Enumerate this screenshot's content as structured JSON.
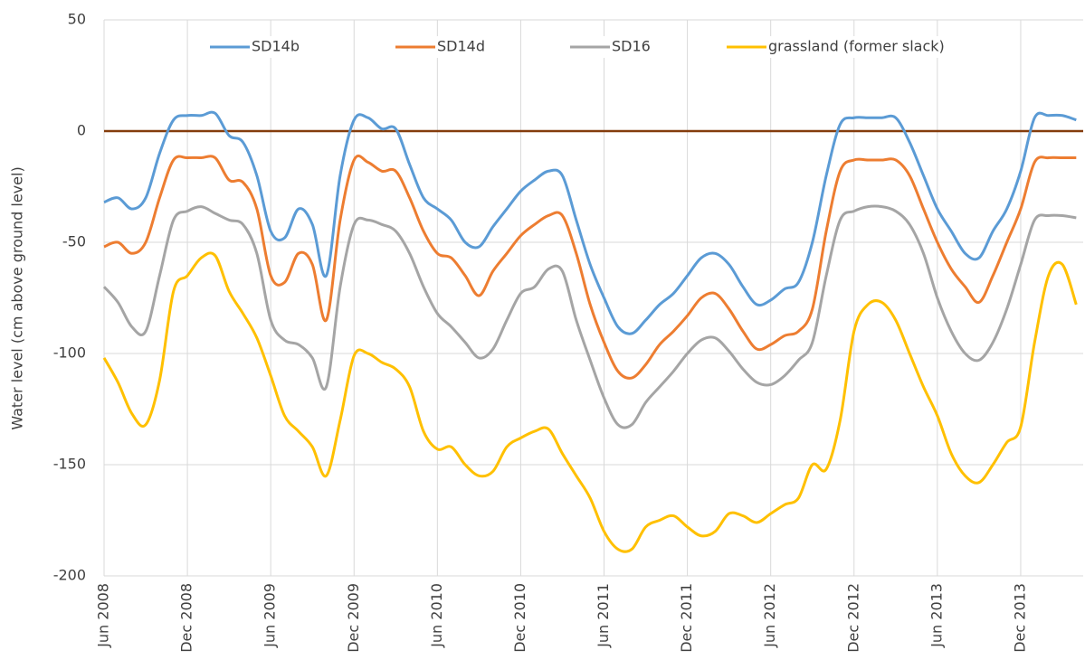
{
  "chart_data": {
    "type": "line",
    "y_label": "Water level (cm above ground level)",
    "categories": [
      "Jun 2008",
      null,
      null,
      null,
      null,
      null,
      "Dec 2008",
      null,
      null,
      null,
      null,
      null,
      "Jun 2009",
      null,
      null,
      null,
      null,
      null,
      "Dec 2009",
      null,
      null,
      null,
      null,
      null,
      "Jun 2010",
      null,
      null,
      null,
      null,
      null,
      "Dec 2010",
      null,
      null,
      null,
      null,
      null,
      "Jun 2011",
      null,
      null,
      null,
      null,
      null,
      "Dec 2011",
      null,
      null,
      null,
      null,
      null,
      "Jun 2012",
      null,
      null,
      null,
      null,
      null,
      "Dec 2012",
      null,
      null,
      null,
      null,
      null,
      "Jun 2013",
      null,
      null,
      null,
      null,
      null,
      "Dec 2013",
      null,
      null,
      null,
      null
    ],
    "series": [
      {
        "name": "SD14b",
        "color": "#5b9bd5",
        "values": [
          -32,
          -30,
          -35,
          -30,
          -10,
          5,
          7,
          7,
          8,
          -2,
          -5,
          -20,
          -45,
          -48,
          -35,
          -42,
          -65,
          -20,
          5,
          6,
          1,
          1,
          -15,
          -30,
          -35,
          -40,
          -50,
          -52,
          -43,
          -35,
          -27,
          -22,
          -18,
          -20,
          -40,
          -60,
          -75,
          -88,
          -91,
          -85,
          -78,
          -73,
          -65,
          -57,
          -55,
          -60,
          -70,
          -78,
          -76,
          -71,
          -68,
          -50,
          -20,
          3,
          6,
          6,
          6,
          6,
          -5,
          -20,
          -35,
          -45,
          -55,
          -57,
          -45,
          -35,
          -18,
          6,
          7,
          7,
          5
        ]
      },
      {
        "name": "SD14d",
        "color": "#ed7d31",
        "values": [
          -52,
          -50,
          -55,
          -50,
          -30,
          -13,
          -12,
          -12,
          -12,
          -22,
          -23,
          -35,
          -65,
          -68,
          -55,
          -60,
          -85,
          -40,
          -13,
          -14,
          -18,
          -18,
          -30,
          -45,
          -55,
          -57,
          -65,
          -74,
          -63,
          -55,
          -47,
          -42,
          -38,
          -38,
          -55,
          -78,
          -95,
          -108,
          -111,
          -105,
          -96,
          -90,
          -83,
          -75,
          -73,
          -80,
          -90,
          -98,
          -96,
          -92,
          -90,
          -80,
          -45,
          -18,
          -13,
          -13,
          -13,
          -13,
          -20,
          -35,
          -50,
          -62,
          -70,
          -77,
          -65,
          -50,
          -35,
          -14,
          -12,
          -12,
          -12
        ]
      },
      {
        "name": "SD16",
        "color": "#a5a5a5",
        "values": [
          -70,
          -77,
          -88,
          -90,
          -65,
          -40,
          -36,
          -34,
          -37,
          -40,
          -42,
          -55,
          -85,
          -94,
          -96,
          -102,
          -115,
          -70,
          -42,
          -40,
          -42,
          -45,
          -55,
          -70,
          -82,
          -88,
          -95,
          -102,
          -98,
          -85,
          -73,
          -70,
          -62,
          -63,
          -85,
          -103,
          -120,
          -132,
          -132,
          -122,
          -115,
          -108,
          -100,
          -94,
          -93,
          -99,
          -107,
          -113,
          -114,
          -110,
          -103,
          -95,
          -65,
          -40,
          -36,
          -34,
          -34,
          -36,
          -42,
          -55,
          -75,
          -90,
          -100,
          -103,
          -95,
          -80,
          -60,
          -40,
          -38,
          -38,
          -39
        ]
      },
      {
        "name": "grassland (former slack)",
        "color": "#ffc000",
        "values": [
          -102,
          -113,
          -127,
          -132,
          -112,
          -72,
          -65,
          -57,
          -56,
          -72,
          -82,
          -93,
          -110,
          -128,
          -135,
          -142,
          -155,
          -130,
          -101,
          -100,
          -104,
          -107,
          -115,
          -135,
          -143,
          -142,
          -150,
          -155,
          -153,
          -142,
          -138,
          -135,
          -134,
          -145,
          -155,
          -165,
          -180,
          -188,
          -188,
          -178,
          -175,
          -173,
          -178,
          -182,
          -180,
          -172,
          -173,
          -176,
          -172,
          -168,
          -165,
          -150,
          -152,
          -130,
          -90,
          -78,
          -77,
          -85,
          -100,
          -115,
          -128,
          -145,
          -155,
          -158,
          -150,
          -140,
          -133,
          -95,
          -65,
          -60,
          -78
        ]
      }
    ],
    "reference_line": {
      "value": 0,
      "color": "#843c0c"
    },
    "ylim": [
      -200,
      50
    ],
    "yticks": [
      -200,
      -150,
      -100,
      -50,
      0,
      50
    ],
    "grid": true,
    "legend": "top"
  }
}
